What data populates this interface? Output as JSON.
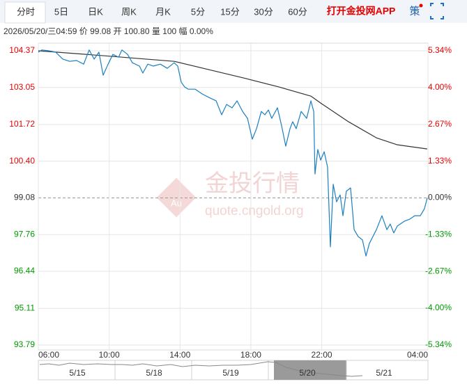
{
  "tabs": [
    "分时",
    "5日",
    "日K",
    "周K",
    "月K",
    "5分",
    "15分",
    "30分",
    "60分"
  ],
  "app_link": "打开金投网APP",
  "strategy": "策",
  "info": "2026/05/20/三04:59 价 99.08 开 100.80 量 100 幅 0.00%",
  "watermark": {
    "logo": "Au",
    "title": "金投行情",
    "url": "quote.cngold.org"
  },
  "navigator": {
    "labels": [
      "5/15",
      "5/18",
      "5/19",
      "5/20",
      "5/21"
    ]
  },
  "chart_data": {
    "type": "line",
    "grid": true,
    "up_color": "#e60000",
    "down_color": "#009900",
    "flat_color": "#333333",
    "xlim": [
      6,
      28
    ],
    "xticks": [
      {
        "value": 6,
        "label": "06:00"
      },
      {
        "value": 10,
        "label": "10:00"
      },
      {
        "value": 14,
        "label": "14:00"
      },
      {
        "value": 18,
        "label": "18:00"
      },
      {
        "value": 22,
        "label": "22:00"
      },
      {
        "value": 28,
        "label": "04:00"
      }
    ],
    "ylim": [
      93.79,
      104.37
    ],
    "yticks": [
      104.37,
      103.05,
      101.72,
      {
        "value": 100.4,
        "label": "100.40"
      },
      99.08,
      97.76,
      96.44,
      95.11,
      93.79
    ],
    "y2lim": [
      -5.34,
      5.34
    ],
    "y2ticks": [
      {
        "value": 5.34,
        "label": "5.34%"
      },
      {
        "value": 4,
        "label": "4.00%"
      },
      {
        "value": 2.67,
        "label": "2.67%"
      },
      {
        "value": 1.33,
        "label": "1.33%"
      },
      {
        "value": 0,
        "label": "0.00%"
      },
      {
        "value": -1.33,
        "label": "-1.33%"
      },
      {
        "value": -2.67,
        "label": "-2.67%"
      },
      {
        "value": -4,
        "label": "-4.00%"
      },
      {
        "value": -5.34,
        "label": "-5.34%"
      }
    ],
    "series": [
      {
        "color": "#1a7fc1",
        "x": [
          6.0,
          6.2,
          6.59,
          6.98,
          7.38,
          7.77,
          8.16,
          8.56,
          8.87,
          9.15,
          9.42,
          9.66,
          9.94,
          10.21,
          10.53,
          10.72,
          11.04,
          11.31,
          11.71,
          11.9,
          12.18,
          12.49,
          12.89,
          13.28,
          13.67,
          13.87,
          14.07,
          14.26,
          14.46,
          14.85,
          15.25,
          15.64,
          16.04,
          16.35,
          16.63,
          16.94,
          17.22,
          17.53,
          17.81,
          18.08,
          18.32,
          18.59,
          18.79,
          18.99,
          19.18,
          19.5,
          19.73,
          19.97,
          20.21,
          20.36,
          20.56,
          20.84,
          21.15,
          21.39,
          21.55,
          21.62,
          21.78,
          21.94,
          22.14,
          22.33,
          22.49,
          22.65,
          22.84,
          23.04,
          23.2,
          23.39,
          23.63,
          23.83,
          24.06,
          24.3,
          24.5,
          24.69,
          25.09,
          25.4,
          25.68,
          25.87,
          26.07,
          26.27,
          26.66,
          26.98,
          27.25,
          27.57,
          27.8,
          27.96
        ],
        "values": [
          104.32,
          104.4,
          104.37,
          104.32,
          104.07,
          103.99,
          104.02,
          103.89,
          104.4,
          104.07,
          104.32,
          103.49,
          103.89,
          104.24,
          104.14,
          104.4,
          104.24,
          103.94,
          103.82,
          103.57,
          103.89,
          103.82,
          103.89,
          103.74,
          103.94,
          103.82,
          103.24,
          103.07,
          102.99,
          102.99,
          102.82,
          102.69,
          102.57,
          102.07,
          102.44,
          102.32,
          102.57,
          102.19,
          101.94,
          101.19,
          101.57,
          102.19,
          102.07,
          102.24,
          101.94,
          102.32,
          101.69,
          100.94,
          101.57,
          101.82,
          101.57,
          102.19,
          101.94,
          102.57,
          102.19,
          99.94,
          100.82,
          100.44,
          100.74,
          100.19,
          97.32,
          99.57,
          98.94,
          99.19,
          98.44,
          99.32,
          99.44,
          97.94,
          97.69,
          97.57,
          96.99,
          97.44,
          97.94,
          98.44,
          97.94,
          98.14,
          97.82,
          98.07,
          98.24,
          98.32,
          98.44,
          98.44,
          98.69,
          99.08
        ]
      },
      {
        "color": "#333333",
        "x": [
          6.0,
          9.74,
          13.67,
          15.64,
          17.61,
          19.58,
          21.39,
          21.94,
          23.51,
          25.09,
          26.27,
          27.96
        ],
        "values": [
          104.37,
          104.19,
          103.99,
          103.69,
          103.39,
          103.07,
          102.74,
          102.49,
          101.82,
          101.24,
          100.99,
          100.84
        ]
      }
    ]
  }
}
